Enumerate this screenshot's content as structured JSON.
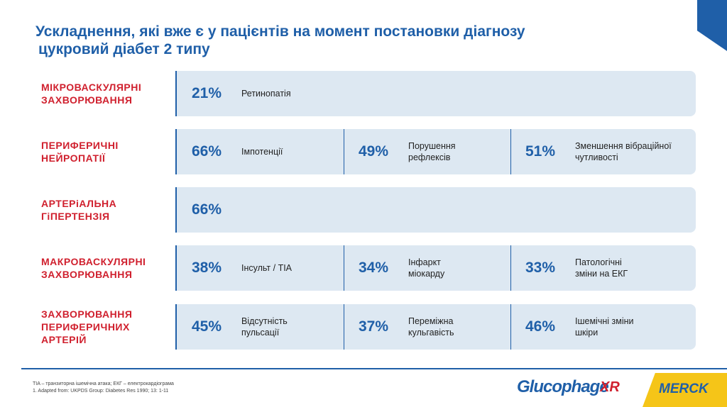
{
  "header": {
    "title": [
      "Ускладнення, які вже є у пацієнтів на момент постановки діагнозу",
      "цукровий діабет 2 типу"
    ]
  },
  "rows": [
    {
      "label": [
        "МІКРОВАСКУЛЯРНІ",
        "ЗАХВОРЮВАННЯ"
      ],
      "items": [
        {
          "value": "21%",
          "text": [
            "Ретинопатія"
          ]
        }
      ]
    },
    {
      "label": [
        "ПЕРИФЕРИЧНІ",
        "НЕЙРОПАТІЇ"
      ],
      "items": [
        {
          "value": "66%",
          "text": [
            "Імпотенції"
          ]
        },
        {
          "value": "49%",
          "text": [
            "Порушення",
            "рефлексів"
          ]
        },
        {
          "value": "51%",
          "text": [
            "Зменшення вібраційної",
            "чутливості"
          ]
        }
      ]
    },
    {
      "label": [
        "АРТЕРіАЛЬНА",
        "ГіПЕРТЕНЗІЯ"
      ],
      "items": [
        {
          "value": "66%",
          "text": []
        }
      ]
    },
    {
      "label": [
        "МАКРОВАСКУЛЯРНІ",
        "ЗАХВОРЮВАННЯ"
      ],
      "items": [
        {
          "value": "38%",
          "text": [
            "Інсульт / TIA"
          ]
        },
        {
          "value": "34%",
          "text": [
            "Інфаркт",
            "міокарду"
          ]
        },
        {
          "value": "33%",
          "text": [
            "Патологічні",
            "зміни на ЕКГ"
          ]
        }
      ]
    },
    {
      "label": [
        "ЗАХВОРЮВАННЯ",
        "ПЕРИФЕРИЧНИХ",
        "АРТЕРІЙ"
      ],
      "items": [
        {
          "value": "45%",
          "text": [
            "Відсутність",
            "пульсації"
          ]
        },
        {
          "value": "37%",
          "text": [
            "Переміжна",
            "кульгавість"
          ]
        },
        {
          "value": "46%",
          "text": [
            "Ішемічні зміни",
            "шкіри"
          ]
        }
      ]
    }
  ],
  "footer": {
    "notes": [
      "TIA – транзиторна ішемічна атака; ЕКГ – електрокардіограма",
      "1. Adapted from: UKPDS Group: Diabetes Res 1990; 13: 1-11"
    ],
    "logos": {
      "glucophage": "Glucophage",
      "xr": "XR",
      "merck": "MERCK"
    }
  }
}
